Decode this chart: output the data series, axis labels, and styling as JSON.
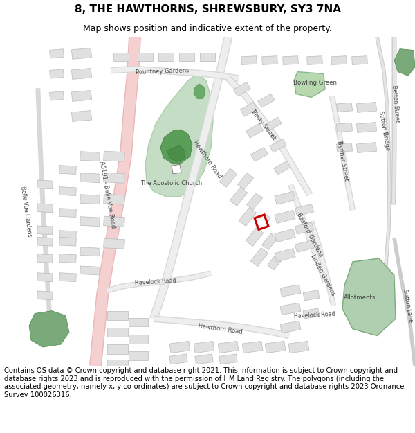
{
  "title": "8, THE HAWTHORNS, SHREWSBURY, SY3 7NA",
  "subtitle": "Map shows position and indicative extent of the property.",
  "footer": "Contains OS data © Crown copyright and database right 2021. This information is subject to Crown copyright and database rights 2023 and is reproduced with the permission of HM Land Registry. The polygons (including the associated geometry, namely x, y co-ordinates) are subject to Crown copyright and database rights 2023 Ordnance Survey 100026316.",
  "map_bg": "#f2f2f2",
  "building_fill": "#e0e0e0",
  "building_edge": "#bbbbbb",
  "green_dark": "#7aaa7a",
  "green_light": "#c5ddc5",
  "green_medium": "#9dc99d",
  "pink_road": "#f0c0c0",
  "red_outline": "#cc0000",
  "title_fontsize": 11,
  "subtitle_fontsize": 9,
  "footer_fontsize": 7.2,
  "label_color": "#444444"
}
